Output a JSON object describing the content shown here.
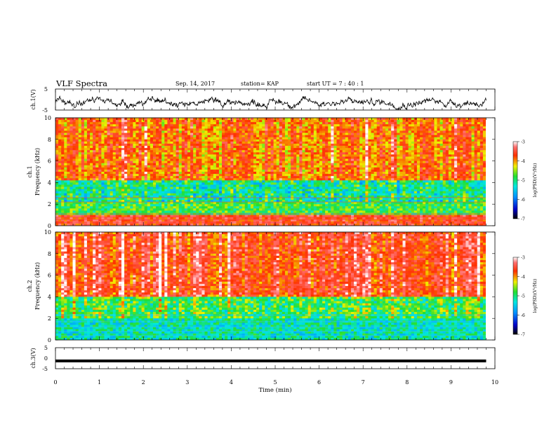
{
  "header": {
    "title": "VLF Spectra",
    "date": "Sep. 14, 2017",
    "station": "station= KAP",
    "start": "start UT =  7 : 40 : 1"
  },
  "chart_data": [
    {
      "type": "line",
      "panel": "ch1-waveform",
      "ylabel": "ch.1(V)",
      "ylim": [
        -5,
        5
      ],
      "yticks": [
        "5",
        "-5"
      ],
      "xlim": [
        0,
        10
      ],
      "series_color": "#000000"
    },
    {
      "type": "heatmap",
      "panel": "ch1-spectrogram",
      "ylabel_top": "ch.1",
      "ylabel": "Frequency (kHz)",
      "xlim": [
        0,
        9.8
      ],
      "ylim": [
        0,
        10
      ],
      "yticks": [
        "0",
        "2",
        "4",
        "6",
        "8",
        "10"
      ],
      "colorbar": {
        "label": "log(PSD)(V²/Hz)",
        "range": [
          -7,
          -3
        ],
        "ticks": [
          "-3",
          "-4",
          "-5",
          "-6",
          "-7"
        ]
      }
    },
    {
      "type": "heatmap",
      "panel": "ch2-spectrogram",
      "ylabel_top": "ch.2",
      "ylabel": "Frequency (kHz)",
      "xlim": [
        0,
        9.8
      ],
      "ylim": [
        0,
        10
      ],
      "yticks": [
        "0",
        "2",
        "4",
        "6",
        "8",
        "10"
      ],
      "colorbar": {
        "label": "log(PSD)(V²/Hz)",
        "range": [
          -7,
          -3
        ],
        "ticks": [
          "-3",
          "-4",
          "-5",
          "-6",
          "-7"
        ]
      }
    },
    {
      "type": "line",
      "panel": "ch3-waveform",
      "ylabel": "ch.3(V)",
      "ylim": [
        -5,
        5
      ],
      "yticks": [
        "5",
        "0",
        "-5"
      ],
      "xlim": [
        0,
        10
      ],
      "level": -1.3,
      "series_color": "#000000"
    }
  ],
  "xaxis": {
    "label": "Time (min)",
    "ticks": [
      "0",
      "1",
      "2",
      "3",
      "4",
      "5",
      "6",
      "7",
      "8",
      "9",
      "10"
    ]
  }
}
